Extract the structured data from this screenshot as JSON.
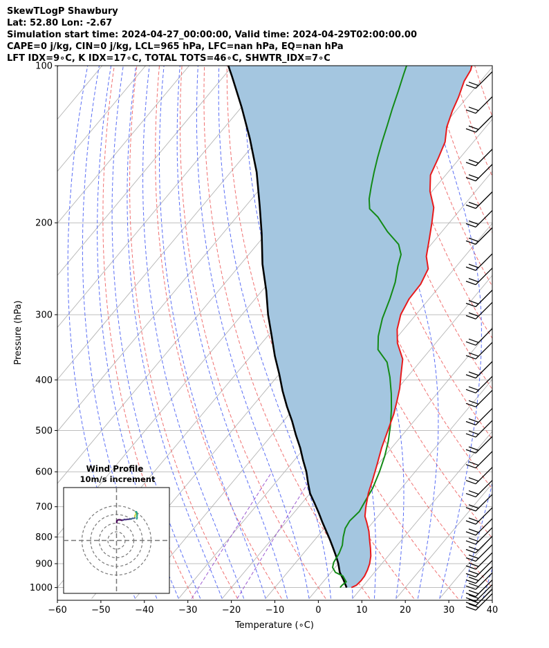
{
  "header": {
    "lines": [
      "SkewTLogP Shawbury",
      "Lat: 52.80   Lon: -2.67",
      "Simulation start time: 2024-04-27_00:00:00, Valid time: 2024-04-29T02:00:00.00",
      "CAPE=0 j/kg, CIN=0 j/kg, LCL=965 hPa, LFC=nan hPa, EQ=nan hPa",
      "LFT IDX=9∘C, K IDX=17∘C, TOTAL TOTS=46∘C, SHWTR_IDX=7∘C"
    ]
  },
  "chart_data": {
    "type": "line",
    "title": "SkewTLogP Shawbury",
    "xlabel": "Temperature (∘C)",
    "ylabel": "Pressure (hPa)",
    "xlim": [
      -60,
      40
    ],
    "ylim": [
      1050,
      100
    ],
    "yscale": "log",
    "grid": true,
    "x_ticks": [
      "−60",
      "−50",
      "−40",
      "−30",
      "−20",
      "−10",
      "0",
      "10",
      "20",
      "30",
      "40"
    ],
    "y_ticks": [
      "100",
      "200",
      "300",
      "400",
      "500",
      "600",
      "700",
      "800",
      "900",
      "1000"
    ],
    "colors": {
      "temperature": "#e8191b",
      "dewpoint": "#138a16",
      "parcel": "#000000",
      "cin_fill": "#a4c6e0",
      "dry_adiabat": "#f07070",
      "moist_adiabat": "#5a6ef5",
      "mixing_ratio": "#9b59d0",
      "isotherm": "#b4b4b4"
    },
    "series": [
      {
        "name": "temperature",
        "points": [
          [
            7.6,
            1000
          ],
          [
            8.3,
            990
          ],
          [
            8.5,
            970
          ],
          [
            8.4,
            950
          ],
          [
            7.9,
            925
          ],
          [
            7.2,
            900
          ],
          [
            6.0,
            870
          ],
          [
            4.4,
            840
          ],
          [
            2.6,
            810
          ],
          [
            0.8,
            780
          ],
          [
            -1.4,
            750
          ],
          [
            -3.0,
            730
          ],
          [
            -4.6,
            700
          ],
          [
            -6.6,
            660
          ],
          [
            -8.3,
            620
          ],
          [
            -10.2,
            580
          ],
          [
            -12.3,
            540
          ],
          [
            -14.2,
            500
          ],
          [
            -16.0,
            465
          ],
          [
            -17.7,
            440
          ],
          [
            -19.6,
            415
          ],
          [
            -22.0,
            390
          ],
          [
            -24.5,
            365
          ],
          [
            -28.8,
            340
          ],
          [
            -31.5,
            320
          ],
          [
            -33.0,
            305
          ],
          [
            -33.5,
            300
          ],
          [
            -34.6,
            280
          ],
          [
            -34.8,
            262
          ],
          [
            -36.0,
            245
          ],
          [
            -38.8,
            232
          ],
          [
            -41.6,
            214
          ],
          [
            -44.0,
            200
          ],
          [
            -46.5,
            187
          ],
          [
            -50.5,
            174
          ],
          [
            -53.5,
            162
          ],
          [
            -55.0,
            150
          ],
          [
            -56.5,
            140
          ],
          [
            -59.0,
            131
          ],
          [
            -60.8,
            122
          ],
          [
            -62.0,
            115
          ],
          [
            -63.8,
            107
          ],
          [
            -64.4,
            102
          ],
          [
            -65.0,
            100
          ]
        ]
      },
      {
        "name": "dewpoint",
        "points": [
          [
            5.0,
            1000
          ],
          [
            5.0,
            990
          ],
          [
            5.3,
            975
          ],
          [
            3.4,
            950
          ],
          [
            1.0,
            935
          ],
          [
            -0.6,
            915
          ],
          [
            -1.3,
            895
          ],
          [
            -1.8,
            860
          ],
          [
            -2.6,
            830
          ],
          [
            -4.0,
            800
          ],
          [
            -5.2,
            770
          ],
          [
            -5.6,
            745
          ],
          [
            -5.2,
            715
          ],
          [
            -5.8,
            685
          ],
          [
            -6.6,
            645
          ],
          [
            -8.2,
            600
          ],
          [
            -10.0,
            560
          ],
          [
            -12.0,
            525
          ],
          [
            -14.5,
            490
          ],
          [
            -17.5,
            455
          ],
          [
            -20.5,
            425
          ],
          [
            -24.0,
            395
          ],
          [
            -27.5,
            370
          ],
          [
            -32.0,
            350
          ],
          [
            -34.5,
            330
          ],
          [
            -37.0,
            305
          ],
          [
            -39.0,
            280
          ],
          [
            -41.0,
            260
          ],
          [
            -43.5,
            242
          ],
          [
            -45.0,
            230
          ],
          [
            -47.5,
            220
          ],
          [
            -52.5,
            208
          ],
          [
            -57.5,
            195
          ],
          [
            -61.0,
            188
          ],
          [
            -63.0,
            180
          ],
          [
            -65.0,
            170
          ],
          [
            -67.0,
            160
          ],
          [
            -69.0,
            150
          ],
          [
            -71.0,
            140
          ],
          [
            -73.0,
            130
          ],
          [
            -75.0,
            121
          ],
          [
            -77.0,
            112
          ],
          [
            -79.0,
            104
          ],
          [
            -80.0,
            100
          ]
        ]
      },
      {
        "name": "parcel",
        "points": [
          [
            6.5,
            1000
          ],
          [
            4.2,
            965
          ],
          [
            2.0,
            935
          ],
          [
            0.0,
            900
          ],
          [
            -2.0,
            870
          ],
          [
            -4.2,
            840
          ],
          [
            -6.5,
            810
          ],
          [
            -9.0,
            780
          ],
          [
            -11.6,
            750
          ],
          [
            -14.2,
            720
          ],
          [
            -17.0,
            690
          ],
          [
            -20.0,
            660
          ],
          [
            -22.5,
            630
          ],
          [
            -25.0,
            600
          ],
          [
            -28.0,
            570
          ],
          [
            -31.0,
            540
          ],
          [
            -34.5,
            510
          ],
          [
            -38.0,
            480
          ],
          [
            -42.0,
            450
          ],
          [
            -46.0,
            420
          ],
          [
            -50.0,
            390
          ],
          [
            -54.5,
            360
          ],
          [
            -59.0,
            330
          ],
          [
            -64.0,
            300
          ],
          [
            -69.0,
            270
          ],
          [
            -75.0,
            240
          ],
          [
            -81.0,
            210
          ],
          [
            -87.0,
            185
          ],
          [
            -94.0,
            160
          ],
          [
            -102.0,
            138
          ],
          [
            -110.0,
            120
          ],
          [
            -118.0,
            105
          ],
          [
            -121.0,
            100
          ]
        ]
      }
    ],
    "wind_barbs": {
      "pressures": [
        1030,
        1010,
        990,
        970,
        940,
        915,
        890,
        860,
        830,
        800,
        770,
        740,
        705,
        665,
        625,
        590,
        550,
        515,
        480,
        455,
        420,
        395,
        370,
        340,
        320,
        285,
        270,
        245,
        230,
        205,
        190,
        175,
        155,
        145,
        125,
        115,
        103
      ]
    },
    "inset": {
      "title": "Wind Profile",
      "subtitle": "10m/s increment",
      "hodograph_points": [
        [
          0.0,
          0.0
        ],
        [
          0.3,
          0.6
        ],
        [
          0.1,
          1.4
        ],
        [
          0.8,
          1.9
        ],
        [
          1.8,
          2.0
        ],
        [
          2.6,
          1.8
        ],
        [
          3.4,
          1.6
        ],
        [
          4.2,
          2.0
        ],
        [
          5.0,
          2.2
        ],
        [
          5.6,
          1.9
        ],
        [
          6.2,
          2.4
        ],
        [
          6.9,
          2.1
        ],
        [
          7.6,
          2.5
        ],
        [
          8.2,
          2.2
        ],
        [
          8.9,
          2.7
        ],
        [
          9.5,
          2.9
        ],
        [
          10.2,
          2.7
        ],
        [
          10.8,
          3.4
        ],
        [
          10.4,
          4.2
        ],
        [
          11.0,
          4.8
        ],
        [
          11.5,
          5.6
        ],
        [
          10.9,
          6.3
        ],
        [
          11.4,
          6.9
        ],
        [
          11.8,
          5.9
        ],
        [
          12.0,
          4.6
        ],
        [
          11.7,
          3.6
        ],
        [
          12.1,
          2.8
        ],
        [
          11.4,
          2.3
        ]
      ]
    }
  }
}
